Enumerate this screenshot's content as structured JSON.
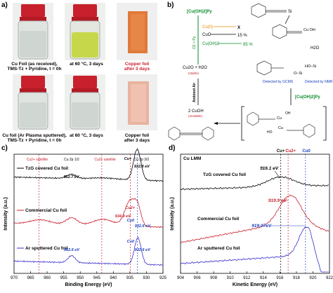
{
  "panel_a": {
    "letter": "a)",
    "row1": {
      "cap1": "Cu Foil (as received),\nTMS-Tz + Pyridine, t = 0h",
      "cap2": "at 60 °C, 3 days",
      "cap3": "Copper foil\nafter 3 days"
    },
    "row2": {
      "cap1": "Cu foil (Ar Plasma sputtered),\nTMS-Tz + Pyridine, t = 0h",
      "cap2": "at 60 °C, 3 days",
      "cap3": "Copper foil\nafter 3 days"
    },
    "colors": {
      "clear": "#d8dcd6",
      "yellow": "#c9d94a",
      "orange_foil": "#e0793a",
      "pink_foil": "#e9b3a0"
    }
  },
  "panel_b": {
    "letter": "b)",
    "top_reagent": "[Cu(OH)2]Py",
    "o2_py": "O2 + Py",
    "cu_ii": "Cu(II)",
    "cuo": "CuO",
    "cuo_yield": "15 %",
    "cuoh2": "Cu(OH)2",
    "cuoh2_yield": "85 %",
    "x_mark": "X",
    "cu2o": "Cu2O + H2O",
    "stable": "(stable)",
    "ambient_air": "Ambient Air",
    "cuoh": "2 CuOH",
    "unstable": "(unstable)",
    "tms": "Si",
    "cu_oh": "Cu\nOH",
    "water": "H2O",
    "detected_gcms": "Detected by\nGCMS",
    "detected_nmr": "Detected by\nNMR",
    "hoSi": "HO–Si",
    "oSi": "O–Si",
    "bottom_reagent": "[Cu(OH)2]Py",
    "bracket_cu1": "Cu",
    "bracket_cu2": "Cu",
    "bracket_oh1": "OH",
    "bracket_oh2": "HO"
  },
  "panel_c": {
    "letter": "c)",
    "top_labels": {
      "cu2p12": "Cu 2p 1/2",
      "cu2p32": "Cu 2p 3/2",
      "sat1": "Cu2+ satellite",
      "sat2": "Cu2+ satellite"
    },
    "series_labels": [
      "TzG covered Cu foil",
      "Commercial Cu foil",
      "Ar sputtered Cu foil"
    ],
    "annotations": [
      "952.7 eV",
      "932.8 eV",
      "Cu+",
      "934.9 eV",
      "Cu2+",
      "932.6 eV",
      "Cu0",
      "952.6 eV",
      "932.6 eV",
      "Cu0"
    ],
    "chart_data": {
      "type": "line",
      "xlabel": "Binding Energy (eV)",
      "ylabel": "Intensity (a.u.)",
      "xlim": [
        970,
        925
      ],
      "x_ticks": [
        970,
        965,
        960,
        955,
        950,
        945,
        940,
        935,
        930,
        925
      ],
      "series": [
        {
          "name": "TzG covered Cu foil",
          "peaks": [
            952.7,
            932.8
          ]
        },
        {
          "name": "Commercial Cu foil",
          "peaks": [
            952.6,
            934.9,
            932.6
          ]
        },
        {
          "name": "Ar sputtered Cu foil",
          "peaks": [
            952.6,
            932.6
          ]
        }
      ]
    }
  },
  "panel_d": {
    "letter": "d)",
    "title": "Cu LMM",
    "top_labels": {
      "cup": "Cu+",
      "cu2p": "Cu2+",
      "cu0": "Cu0"
    },
    "series_labels": [
      "TzG covered Cu foil",
      "Commercial Cu foil",
      "Ar sputtered Cu foil"
    ],
    "annotations": [
      "916.1 eV",
      "919.9 eV",
      "919.07eV"
    ],
    "chart_data": {
      "type": "line",
      "xlabel": "Kinetic Energy (eV)",
      "ylabel": "Intensity (a.u.)",
      "xlim": [
        904,
        922
      ],
      "x_ticks": [
        904,
        906,
        908,
        910,
        912,
        914,
        916,
        918,
        920,
        922
      ],
      "series": [
        {
          "name": "TzG covered Cu foil",
          "peak": 916.1
        },
        {
          "name": "Commercial Cu foil",
          "peak": 919.9
        },
        {
          "name": "Ar sputtered Cu foil",
          "peak": 919.07
        }
      ]
    }
  }
}
